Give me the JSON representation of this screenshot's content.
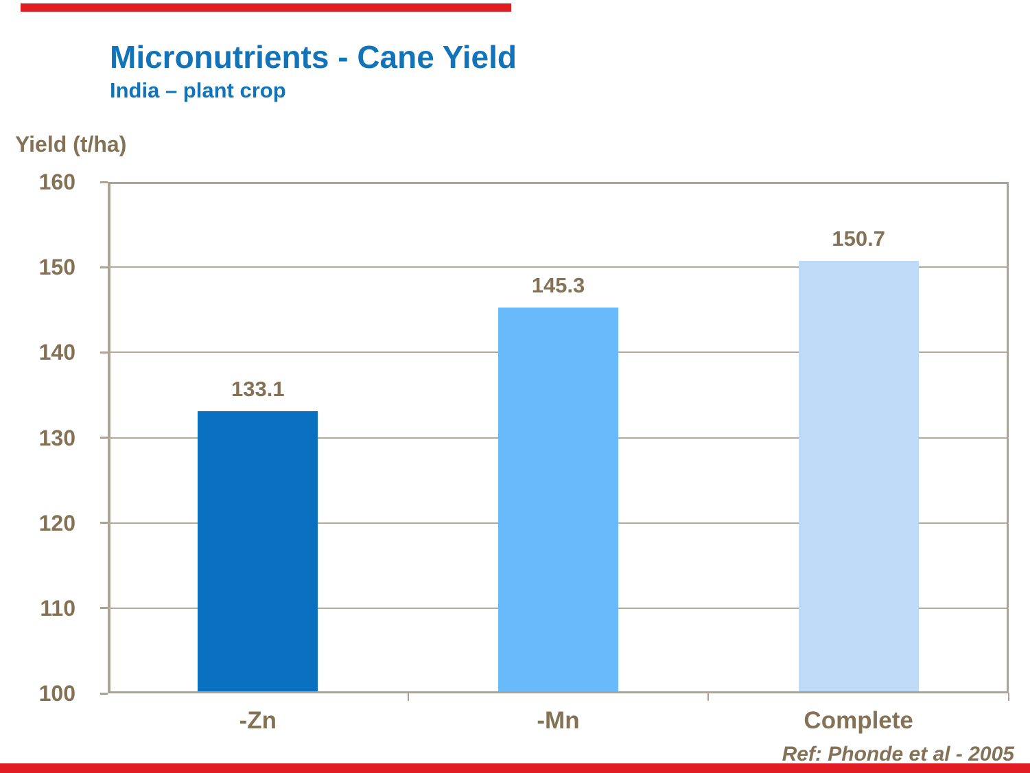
{
  "slide": {
    "title": "Micronutrients - Cane Yield",
    "subtitle": "India – plant crop",
    "reference": "Ref: Phonde et al - 2005"
  },
  "colors": {
    "title_blue": "#1273B8",
    "text_brown": "#847257",
    "grid_line": "#B3A99A",
    "frame_line": "#AEA294",
    "accent_red": "#E11B22",
    "bar_fills": [
      "#0A71C1",
      "#69BAFB",
      "#BFDAF6"
    ]
  },
  "chart_data": {
    "type": "bar",
    "title": "Micronutrients - Cane Yield",
    "subtitle": "India – plant crop",
    "ylabel": "Yield (t/ha)",
    "xlabel": "",
    "categories": [
      "-Zn",
      "-Mn",
      "Complete"
    ],
    "values": [
      133.1,
      145.3,
      150.7
    ],
    "value_labels": [
      "133.1",
      "145.3",
      "150.7"
    ],
    "ylim": [
      100,
      160
    ],
    "yticks": [
      100,
      110,
      120,
      130,
      140,
      150,
      160
    ],
    "ytick_step": 10,
    "grid": true,
    "legend": false,
    "annotation": "Ref: Phonde et al - 2005"
  }
}
